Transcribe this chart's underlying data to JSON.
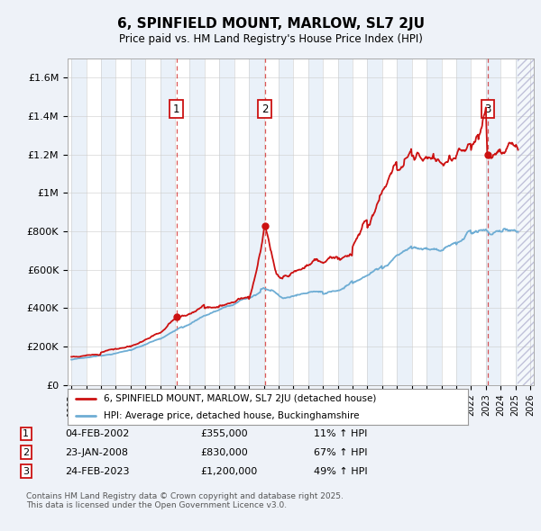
{
  "title": "6, SPINFIELD MOUNT, MARLOW, SL7 2JU",
  "subtitle": "Price paid vs. HM Land Registry's House Price Index (HPI)",
  "hpi_label": "HPI: Average price, detached house, Buckinghamshire",
  "property_label": "6, SPINFIELD MOUNT, MARLOW, SL7 2JU (detached house)",
  "transactions": [
    {
      "num": 1,
      "date": "04-FEB-2002",
      "price": "£355,000",
      "hpi_pct": "11%",
      "x_year": 2002.09,
      "y_val": 355000
    },
    {
      "num": 2,
      "date": "23-JAN-2008",
      "price": "£830,000",
      "hpi_pct": "67%",
      "x_year": 2008.06,
      "y_val": 830000
    },
    {
      "num": 3,
      "date": "24-FEB-2023",
      "price": "£1,200,000",
      "hpi_pct": "49%",
      "x_year": 2023.15,
      "y_val": 1200000
    }
  ],
  "footer_line1": "Contains HM Land Registry data © Crown copyright and database right 2025.",
  "footer_line2": "This data is licensed under the Open Government Licence v3.0.",
  "bg_color": "#eef2f8",
  "plot_bg": "#ffffff",
  "red_color": "#cc1111",
  "blue_color": "#6eadd4",
  "grid_color": "#cccccc",
  "band_color": "#dce8f5",
  "ylim": [
    0,
    1700000
  ],
  "xlim": [
    1994.75,
    2026.25
  ],
  "yticks": [
    0,
    200000,
    400000,
    600000,
    800000,
    1000000,
    1200000,
    1400000,
    1600000
  ],
  "ytick_labels": [
    "£0",
    "£200K",
    "£400K",
    "£600K",
    "£800K",
    "£1M",
    "£1.2M",
    "£1.4M",
    "£1.6M"
  ],
  "x_start": 1995,
  "x_end": 2026,
  "hatch_start": 2025.17
}
